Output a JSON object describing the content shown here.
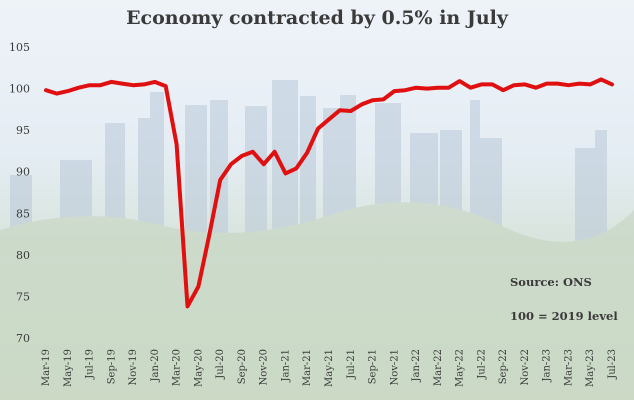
{
  "chart_data": {
    "type": "line",
    "title": "Economy contracted by 0.5% in July",
    "xlabel": "",
    "ylabel": "",
    "ylim": [
      70,
      105
    ],
    "yticks": [
      70,
      75,
      80,
      85,
      90,
      95,
      100,
      105
    ],
    "grid": false,
    "line_color": "#e01010",
    "annotations": [
      "Source: ONS",
      "100 = 2019 level"
    ],
    "x": [
      "Mar-19",
      "Apr-19",
      "May-19",
      "Jun-19",
      "Jul-19",
      "Aug-19",
      "Sep-19",
      "Oct-19",
      "Nov-19",
      "Dec-19",
      "Jan-20",
      "Feb-20",
      "Mar-20",
      "Apr-20",
      "May-20",
      "Jun-20",
      "Jul-20",
      "Aug-20",
      "Sep-20",
      "Oct-20",
      "Nov-20",
      "Dec-20",
      "Jan-21",
      "Feb-21",
      "Mar-21",
      "Apr-21",
      "May-21",
      "Jun-21",
      "Jul-21",
      "Aug-21",
      "Sep-21",
      "Oct-21",
      "Nov-21",
      "Dec-21",
      "Jan-22",
      "Feb-22",
      "Mar-22",
      "Apr-22",
      "May-22",
      "Jun-22",
      "Jul-22",
      "Aug-22",
      "Sep-22",
      "Oct-22",
      "Nov-22",
      "Dec-22",
      "Jan-23",
      "Feb-23",
      "Mar-23",
      "Apr-23",
      "May-23",
      "Jun-23",
      "Jul-23"
    ],
    "xtick_labels": [
      "Mar-19",
      "May-19",
      "Jul-19",
      "Sep-19",
      "Nov-19",
      "Jan-20",
      "Mar-20",
      "May-20",
      "Jul-20",
      "Sep-20",
      "Nov-20",
      "Jan-21",
      "Mar-21",
      "May-21",
      "Jul-21",
      "Sep-21",
      "Nov-21",
      "Jan-22",
      "Mar-22",
      "May-22",
      "Jul-22",
      "Sep-22",
      "Nov-22",
      "Jan-23",
      "Mar-23",
      "May-23",
      "Jul-23"
    ],
    "series": [
      {
        "values": [
          99.8,
          99.4,
          99.7,
          100.1,
          100.4,
          100.4,
          100.8,
          100.6,
          100.4,
          100.5,
          100.8,
          100.3,
          93.3,
          73.8,
          76.2,
          82.4,
          89.0,
          90.9,
          91.9,
          92.4,
          90.9,
          92.4,
          89.8,
          90.4,
          92.3,
          95.2,
          96.3,
          97.4,
          97.3,
          98.1,
          98.6,
          98.7,
          99.7,
          99.8,
          100.1,
          100.0,
          100.1,
          100.1,
          100.9,
          100.1,
          100.5,
          100.5,
          99.8,
          100.4,
          100.5,
          100.1,
          100.6,
          100.6,
          100.4,
          100.6,
          100.5,
          101.1,
          100.5
        ]
      }
    ]
  }
}
